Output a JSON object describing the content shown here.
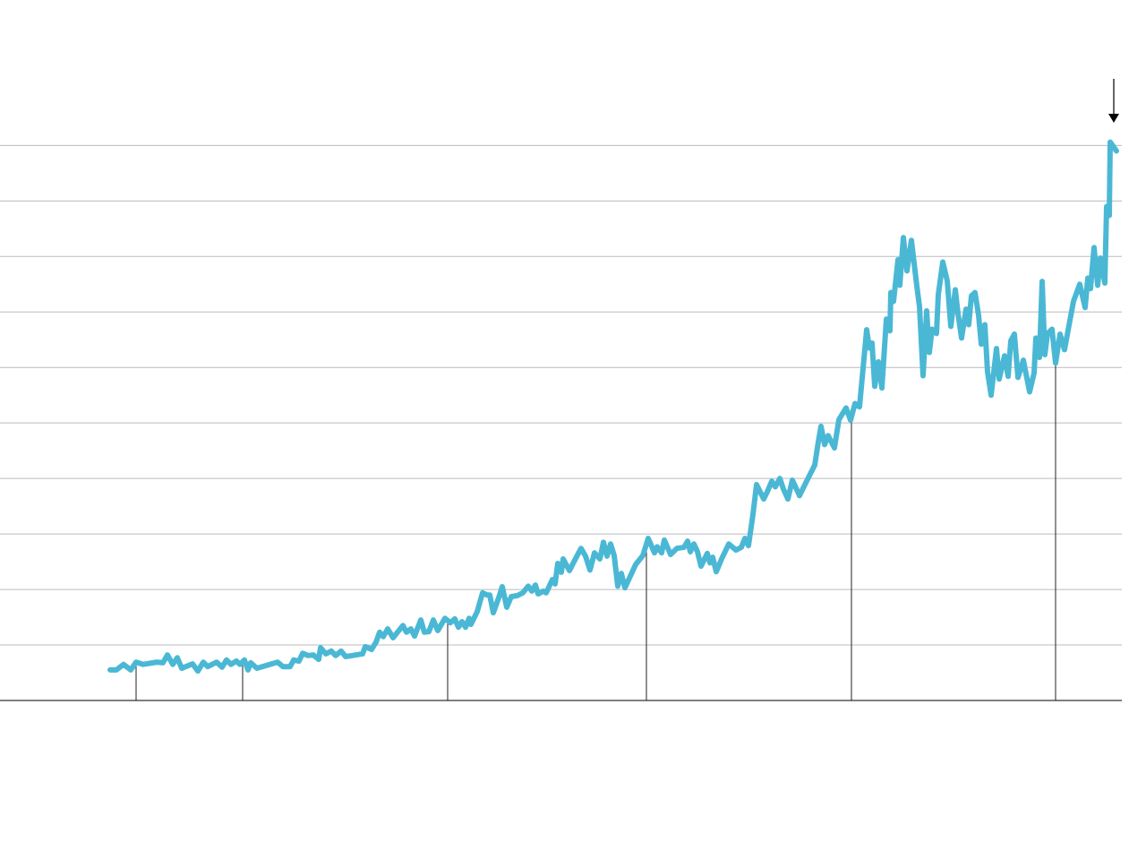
{
  "chart_data": {
    "type": "line",
    "x": [
      123,
      130,
      138,
      146,
      152,
      160,
      175,
      182,
      187,
      193,
      198,
      203,
      215,
      221,
      227,
      232,
      242,
      248,
      253,
      258,
      264,
      268,
      273,
      277,
      280,
      287,
      310,
      316,
      324,
      328,
      334,
      338,
      344,
      350,
      356,
      358,
      364,
      370,
      375,
      381,
      386,
      405,
      408,
      415,
      420,
      424,
      428,
      433,
      439,
      450,
      454,
      459,
      463,
      470,
      474,
      479,
      484,
      489,
      497,
      503,
      508,
      512,
      516,
      520,
      524,
      526,
      533,
      539,
      544,
      547,
      551,
      557,
      561,
      566,
      571,
      578,
      584,
      590,
      594,
      598,
      601,
      607,
      610,
      617,
      620,
      623,
      627,
      629,
      636,
      643,
      649,
      654,
      659,
      664,
      670,
      674,
      678,
      682,
      686,
      690,
      694,
      698,
      710,
      718,
      724,
      731,
      734,
      739,
      742,
      749,
      756,
      764,
      768,
      771,
      775,
      779,
      783,
      790,
      793,
      796,
      800,
      806,
      814,
      822,
      828,
      832,
      836,
      841,
      845,
      853,
      857,
      862,
      866,
      871,
      875,
      880,
      885,
      893,
      900,
      910,
      914,
      917,
      921,
      925,
      932,
      937,
      945,
      950,
      955,
      960,
      968,
      971,
      974,
      977,
      981,
      985,
      990,
      994,
      995,
      998,
      1003,
      1005,
      1009,
      1013,
      1018,
      1024,
      1027,
      1031,
      1035,
      1038,
      1041,
      1046,
      1048,
      1053,
      1058,
      1062,
      1067,
      1070,
      1074,
      1079,
      1082,
      1085,
      1089,
      1093,
      1096,
      1100,
      1103,
      1107,
      1113,
      1116,
      1122,
      1126,
      1129,
      1133,
      1137,
      1143,
      1150,
      1155,
      1157,
      1161,
      1164,
      1167,
      1170,
      1175,
      1179,
      1184,
      1189,
      1194,
      1199,
      1206,
      1212,
      1215,
      1218,
      1222,
      1226,
      1229,
      1234,
      1236,
      1239,
      1240,
      1244,
      1247
    ],
    "series": [
      {
        "color": "#4ab8d4",
        "values": [
          0.55,
          0.55,
          0.65,
          0.55,
          0.69,
          0.65,
          0.69,
          0.68,
          0.82,
          0.65,
          0.77,
          0.58,
          0.66,
          0.53,
          0.69,
          0.61,
          0.69,
          0.6,
          0.73,
          0.65,
          0.71,
          0.65,
          0.73,
          0.55,
          0.68,
          0.58,
          0.69,
          0.61,
          0.61,
          0.73,
          0.71,
          0.85,
          0.81,
          0.82,
          0.74,
          0.95,
          0.84,
          0.89,
          0.81,
          0.89,
          0.79,
          0.84,
          0.97,
          0.92,
          1.05,
          1.23,
          1.15,
          1.29,
          1.13,
          1.35,
          1.23,
          1.29,
          1.16,
          1.45,
          1.23,
          1.24,
          1.45,
          1.26,
          1.48,
          1.4,
          1.47,
          1.32,
          1.42,
          1.32,
          1.48,
          1.37,
          1.6,
          1.94,
          1.9,
          1.9,
          1.58,
          1.85,
          2.05,
          1.68,
          1.87,
          1.89,
          1.94,
          2.06,
          1.97,
          2.08,
          1.92,
          1.97,
          1.94,
          2.18,
          2.1,
          2.47,
          2.31,
          2.55,
          2.34,
          2.56,
          2.74,
          2.6,
          2.35,
          2.66,
          2.55,
          2.85,
          2.6,
          2.82,
          2.61,
          2.06,
          2.29,
          2.03,
          2.45,
          2.61,
          2.92,
          2.66,
          2.77,
          2.66,
          2.89,
          2.63,
          2.74,
          2.76,
          2.87,
          2.68,
          2.82,
          2.68,
          2.42,
          2.65,
          2.48,
          2.58,
          2.32,
          2.55,
          2.82,
          2.71,
          2.76,
          2.92,
          2.79,
          3.35,
          3.89,
          3.63,
          3.76,
          3.95,
          3.85,
          4.0,
          3.81,
          3.63,
          3.97,
          3.69,
          3.92,
          4.24,
          4.66,
          4.94,
          4.61,
          4.77,
          4.55,
          5.06,
          5.27,
          5.05,
          5.35,
          5.29,
          6.68,
          6.35,
          6.44,
          5.66,
          6.1,
          5.63,
          6.87,
          6.66,
          7.35,
          7.19,
          7.94,
          7.48,
          8.34,
          7.74,
          8.29,
          7.47,
          7.1,
          5.85,
          7.02,
          6.27,
          6.69,
          6.61,
          7.31,
          7.9,
          7.56,
          6.74,
          7.4,
          6.97,
          6.53,
          7.05,
          6.77,
          7.29,
          7.35,
          6.94,
          6.42,
          6.77,
          5.92,
          5.5,
          6.34,
          5.79,
          6.21,
          5.84,
          6.48,
          6.6,
          5.82,
          6.13,
          5.56,
          5.9,
          6.53,
          6.18,
          7.55,
          6.23,
          6.61,
          6.69,
          6.08,
          6.6,
          6.32,
          6.76,
          7.19,
          7.5,
          7.08,
          7.61,
          7.42,
          8.16,
          7.48,
          7.97,
          7.52,
          8.9,
          8.74,
          10.06,
          9.97,
          9.9
        ]
      }
    ],
    "event_x": [
      152,
      271,
      500,
      722,
      951,
      1179
    ],
    "xlim": [
      0,
      1253
    ],
    "ylim": [
      0,
      11.2
    ],
    "yticks": [
      0,
      1,
      2,
      3,
      4,
      5,
      6,
      7,
      8,
      9,
      10
    ],
    "grid": true
  }
}
